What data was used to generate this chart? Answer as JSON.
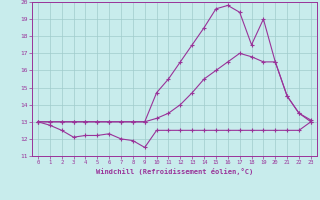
{
  "xlabel": "Windchill (Refroidissement éolien,°C)",
  "bg_color": "#c8ecec",
  "line_color": "#993399",
  "grid_color": "#a0cccc",
  "xlim": [
    -0.5,
    23.5
  ],
  "ylim": [
    11,
    20
  ],
  "yticks": [
    11,
    12,
    13,
    14,
    15,
    16,
    17,
    18,
    19,
    20
  ],
  "xticks": [
    0,
    1,
    2,
    3,
    4,
    5,
    6,
    7,
    8,
    9,
    10,
    11,
    12,
    13,
    14,
    15,
    16,
    17,
    18,
    19,
    20,
    21,
    22,
    23
  ],
  "line1_x": [
    0,
    1,
    2,
    3,
    4,
    5,
    6,
    7,
    8,
    9,
    10,
    11,
    12,
    13,
    14,
    15,
    16,
    17,
    18,
    19,
    20,
    21,
    22,
    23
  ],
  "line1_y": [
    13.0,
    12.8,
    12.5,
    12.1,
    12.2,
    12.2,
    12.3,
    12.0,
    11.9,
    11.5,
    12.5,
    12.5,
    12.5,
    12.5,
    12.5,
    12.5,
    12.5,
    12.5,
    12.5,
    12.5,
    12.5,
    12.5,
    12.5,
    13.0
  ],
  "line2_x": [
    0,
    1,
    2,
    3,
    4,
    5,
    6,
    7,
    8,
    9,
    10,
    11,
    12,
    13,
    14,
    15,
    16,
    17,
    18,
    19,
    20,
    21,
    22,
    23
  ],
  "line2_y": [
    13.0,
    13.0,
    13.0,
    13.0,
    13.0,
    13.0,
    13.0,
    13.0,
    13.0,
    13.0,
    13.2,
    13.5,
    14.0,
    14.7,
    15.5,
    16.0,
    16.5,
    17.0,
    16.8,
    16.5,
    16.5,
    14.5,
    13.5,
    13.1
  ],
  "line3_x": [
    0,
    1,
    2,
    3,
    4,
    5,
    6,
    7,
    8,
    9,
    10,
    11,
    12,
    13,
    14,
    15,
    16,
    17,
    18,
    19,
    20,
    21,
    22,
    23
  ],
  "line3_y": [
    13.0,
    13.0,
    13.0,
    13.0,
    13.0,
    13.0,
    13.0,
    13.0,
    13.0,
    13.0,
    14.7,
    15.5,
    16.5,
    17.5,
    18.5,
    19.6,
    19.8,
    19.4,
    17.5,
    19.0,
    16.5,
    14.5,
    13.5,
    13.0
  ]
}
